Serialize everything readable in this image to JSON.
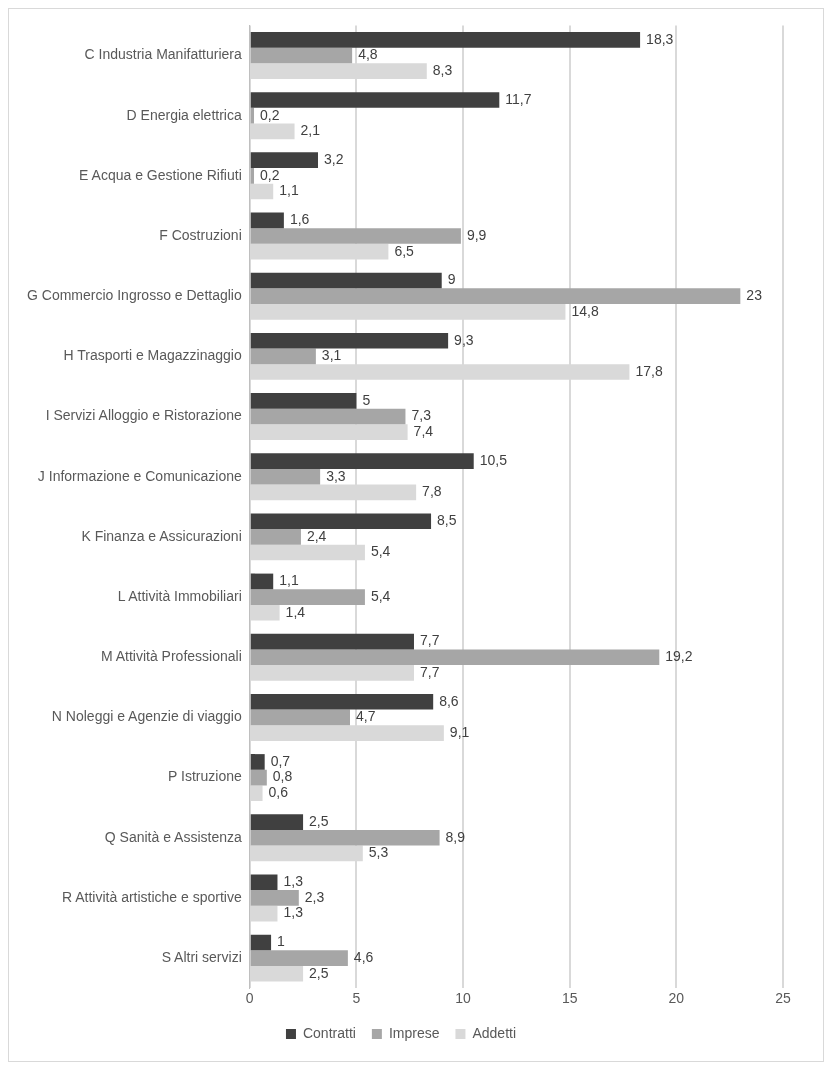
{
  "chart_data": {
    "type": "bar",
    "orientation": "horizontal",
    "categories": [
      "C Industria Manifatturiera",
      "D Energia elettrica",
      "E Acqua e Gestione Rifiuti",
      "F Costruzioni",
      "G Commercio Ingrosso e Dettaglio",
      "H Trasporti e Magazzinaggio",
      "I Servizi Alloggio e Ristorazione",
      "J Informazione e Comunicazione",
      "K Finanza e Assicurazioni",
      "L Attività Immobiliari",
      "M Attività Professionali",
      "N Noleggi e Agenzie di viaggio",
      "P Istruzione",
      "Q Sanità e Assistenza",
      "R Attività artistiche e sportive",
      "S Altri servizi"
    ],
    "series": [
      {
        "name": "Contratti",
        "color": "#404040",
        "values": [
          18.3,
          11.7,
          3.2,
          1.6,
          9,
          9.3,
          5,
          10.5,
          8.5,
          1.1,
          7.7,
          8.6,
          0.7,
          2.5,
          1.3,
          1
        ],
        "value_labels": [
          "18,3",
          "11,7",
          "3,2",
          "1,6",
          "9",
          "9,3",
          "5",
          "10,5",
          "8,5",
          "1,1",
          "7,7",
          "8,6",
          "0,7",
          "2,5",
          "1,3",
          "1"
        ]
      },
      {
        "name": "Imprese",
        "color": "#a6a6a6",
        "values": [
          4.8,
          0.2,
          0.2,
          9.9,
          23,
          3.1,
          7.3,
          3.3,
          2.4,
          5.4,
          19.2,
          4.7,
          0.8,
          8.9,
          2.3,
          4.6
        ],
        "value_labels": [
          "4,8",
          "0,2",
          "0,2",
          "9,9",
          "23",
          "3,1",
          "7,3",
          "3,3",
          "2,4",
          "5,4",
          "19,2",
          "4,7",
          "0,8",
          "8,9",
          "2,3",
          "4,6"
        ]
      },
      {
        "name": "Addetti",
        "color": "#d9d9d9",
        "values": [
          8.3,
          2.1,
          1.1,
          6.5,
          14.8,
          17.8,
          7.4,
          7.8,
          5.4,
          1.4,
          7.7,
          9.1,
          0.6,
          5.3,
          1.3,
          2.5
        ],
        "value_labels": [
          "8,3",
          "2,1",
          "1,1",
          "6,5",
          "14,8",
          "17,8",
          "7,4",
          "7,8",
          "5,4",
          "1,4",
          "7,7",
          "9,1",
          "0,6",
          "5,3",
          "1,3",
          "2,5"
        ]
      }
    ],
    "xlim": [
      0,
      25
    ],
    "xticks": [
      0,
      5,
      10,
      15,
      20,
      25
    ],
    "grid": "x",
    "legend": "bottom"
  }
}
